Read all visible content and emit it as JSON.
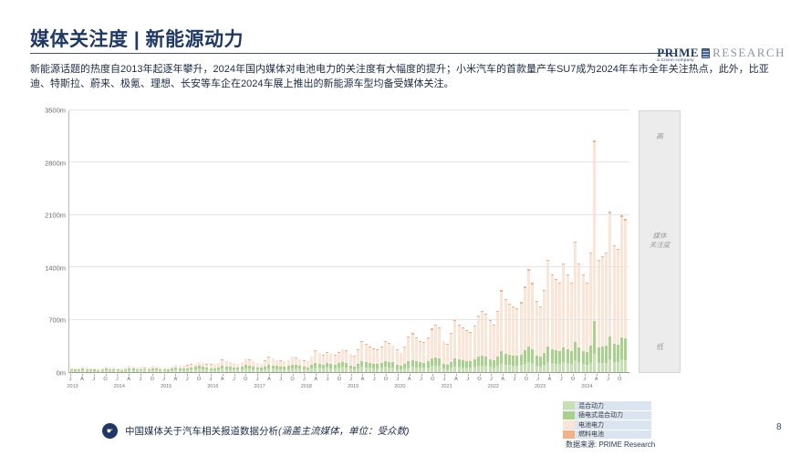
{
  "header": {
    "title": "媒体关注度 | 新能源动力",
    "logo": {
      "prime": "PRIME",
      "research": "RESEARCH",
      "tagline": "a Cision company"
    }
  },
  "summary": {
    "text": "新能源话题的热度自2013年起逐年攀升，2024年国内媒体对电池电力的关注度有大幅度的提升；小米汽车的首款量产车SU7成为2024年车市全年关注热点，此外，比亚迪、特斯拉、蔚来、极氪、理想、长安等车企在2024车展上推出的新能源车型均备受媒体关注。"
  },
  "chart_data": {
    "type": "bar",
    "stacked": true,
    "title": "",
    "xlabel": "",
    "ylabel": "",
    "unit": "m (受众数, 百万)",
    "ylim": [
      0,
      3500
    ],
    "y_ticks": [
      "0m",
      "700m",
      "1400m",
      "2100m",
      "2800m",
      "3500m"
    ],
    "years": [
      "2013",
      "2014",
      "2015",
      "2016",
      "2017",
      "2018",
      "2019",
      "2020",
      "2021",
      "2022",
      "2023",
      "2024"
    ],
    "month_tick_offsets": [
      0,
      3,
      6,
      9
    ],
    "month_tick_labels": [
      "J",
      "A",
      "J",
      "O"
    ],
    "legend_position": "bottom-right",
    "grid": true,
    "series": [
      {
        "name": "混合动力",
        "color": "#c6e0b4",
        "values": [
          23,
          18,
          20,
          25,
          22,
          20,
          18,
          17,
          20,
          25,
          23,
          21,
          19,
          17,
          22,
          30,
          25,
          23,
          21,
          20,
          22,
          29,
          27,
          22,
          20,
          18,
          25,
          31,
          29,
          27,
          30,
          35,
          38,
          45,
          41,
          35,
          29,
          27,
          35,
          46,
          41,
          38,
          35,
          32,
          38,
          52,
          46,
          41,
          31,
          29,
          39,
          51,
          46,
          41,
          39,
          36,
          41,
          53,
          49,
          44,
          34,
          32,
          46,
          64,
          57,
          51,
          59,
          55,
          51,
          59,
          68,
          64,
          43,
          37,
          51,
          71,
          65,
          58,
          54,
          51,
          58,
          71,
          66,
          61,
          42,
          36,
          48,
          67,
          73,
          64,
          59,
          56,
          64,
          81,
          90,
          84,
          46,
          42,
          57,
          77,
          70,
          66,
          62,
          59,
          68,
          84,
          90,
          86,
          70,
          64,
          82,
          110,
          98,
          92,
          88,
          86,
          94,
          115,
          138,
          120,
          86,
          79,
          99,
          135,
          117,
          113,
          108,
          131,
          117,
          108,
          158,
          131,
          104,
          96,
          128,
          248,
          120,
          124,
          128,
          172,
          136,
          132,
          168,
          164
        ]
      },
      {
        "name": "插电式混合动力",
        "color": "#a9d18e",
        "values": [
          18,
          14,
          15,
          20,
          17,
          15,
          14,
          13,
          15,
          20,
          18,
          16,
          15,
          13,
          17,
          24,
          20,
          18,
          17,
          16,
          18,
          23,
          21,
          17,
          16,
          15,
          20,
          26,
          24,
          22,
          25,
          28,
          31,
          36,
          34,
          28,
          26,
          24,
          31,
          41,
          36,
          34,
          31,
          29,
          34,
          46,
          41,
          36,
          30,
          28,
          37,
          49,
          44,
          40,
          37,
          35,
          40,
          50,
          47,
          42,
          34,
          32,
          46,
          64,
          57,
          51,
          59,
          55,
          51,
          59,
          68,
          64,
          48,
          42,
          57,
          80,
          72,
          65,
          61,
          57,
          65,
          80,
          74,
          68,
          51,
          44,
          58,
          82,
          88,
          78,
          71,
          68,
          78,
          99,
          109,
          102,
          67,
          61,
          83,
          112,
          102,
          96,
          90,
          86,
          99,
          122,
          131,
          125,
          105,
          96,
          123,
          165,
          147,
          138,
          132,
          129,
          141,
          173,
          207,
          180,
          133,
          123,
          154,
          210,
          182,
          175,
          168,
          203,
          182,
          168,
          245,
          203,
          182,
          168,
          224,
          434,
          210,
          217,
          224,
          301,
          238,
          231,
          294,
          287
        ]
      },
      {
        "name": "电池电力",
        "color": "#fbe5d6",
        "values": [
          23,
          17,
          19,
          24,
          20,
          19,
          17,
          17,
          19,
          24,
          23,
          20,
          20,
          17,
          22,
          30,
          26,
          24,
          21,
          19,
          23,
          29,
          27,
          22,
          22,
          20,
          28,
          35,
          32,
          31,
          34,
          39,
          43,
          50,
          46,
          39,
          47,
          41,
          55,
          73,
          64,
          59,
          55,
          51,
          59,
          81,
          73,
          64,
          60,
          55,
          74,
          99,
          89,
          79,
          74,
          70,
          79,
          101,
          93,
          84,
          82,
          77,
          112,
          153,
          138,
          121,
          144,
          132,
          121,
          144,
          165,
          153,
          151,
          134,
          183,
          256,
          232,
          207,
          195,
          183,
          207,
          256,
          238,
          220,
          198,
          172,
          224,
          317,
          343,
          304,
          277,
          264,
          304,
          383,
          422,
          396,
          299,
          269,
          370,
          497,
          455,
          426,
          397,
          384,
          441,
          539,
          583,
          553,
          511,
          467,
          599,
          803,
          715,
          672,
          642,
          628,
          686,
          839,
          1007,
          876,
          721,
          669,
          836,
          1140,
          988,
          949,
          912,
          1101,
          988,
          912,
          1329,
          1101,
          1001,
          924,
          1232,
          2387,
          1155,
          1193,
          1232,
          1655,
          1309,
          1270,
          1617,
          1578
        ]
      },
      {
        "name": "燃料电池",
        "color": "#f4b183",
        "values": [
          1,
          1,
          1,
          1,
          1,
          1,
          1,
          1,
          1,
          1,
          1,
          1,
          1,
          1,
          1,
          1,
          1,
          1,
          1,
          1,
          1,
          1,
          1,
          1,
          2,
          2,
          2,
          3,
          3,
          2,
          3,
          3,
          3,
          4,
          4,
          3,
          3,
          3,
          4,
          5,
          4,
          4,
          4,
          3,
          4,
          6,
          5,
          4,
          4,
          3,
          5,
          6,
          6,
          5,
          5,
          4,
          5,
          6,
          6,
          5,
          5,
          4,
          6,
          9,
          8,
          7,
          8,
          8,
          7,
          8,
          9,
          9,
          8,
          7,
          9,
          13,
          11,
          10,
          10,
          9,
          10,
          13,
          12,
          11,
          9,
          8,
          10,
          14,
          16,
          14,
          13,
          12,
          14,
          17,
          19,
          18,
          8,
          8,
          10,
          14,
          13,
          12,
          11,
          11,
          12,
          15,
          16,
          16,
          14,
          13,
          16,
          22,
          20,
          18,
          18,
          17,
          19,
          23,
          28,
          24,
          10,
          9,
          11,
          15,
          13,
          13,
          12,
          15,
          13,
          12,
          18,
          15,
          13,
          12,
          16,
          31,
          15,
          16,
          16,
          22,
          17,
          17,
          21,
          21
        ]
      }
    ]
  },
  "scale_panel": {
    "top": "高",
    "middle_line1": "媒体",
    "middle_line2": "关注度",
    "bottom": "低"
  },
  "footer": {
    "note": "中国媒体关于汽车相关报道数据分析",
    "note_italic": "(涵盖主流媒体，单位：受众数)",
    "source": "数据来源: PRIME Research",
    "page": "8"
  }
}
